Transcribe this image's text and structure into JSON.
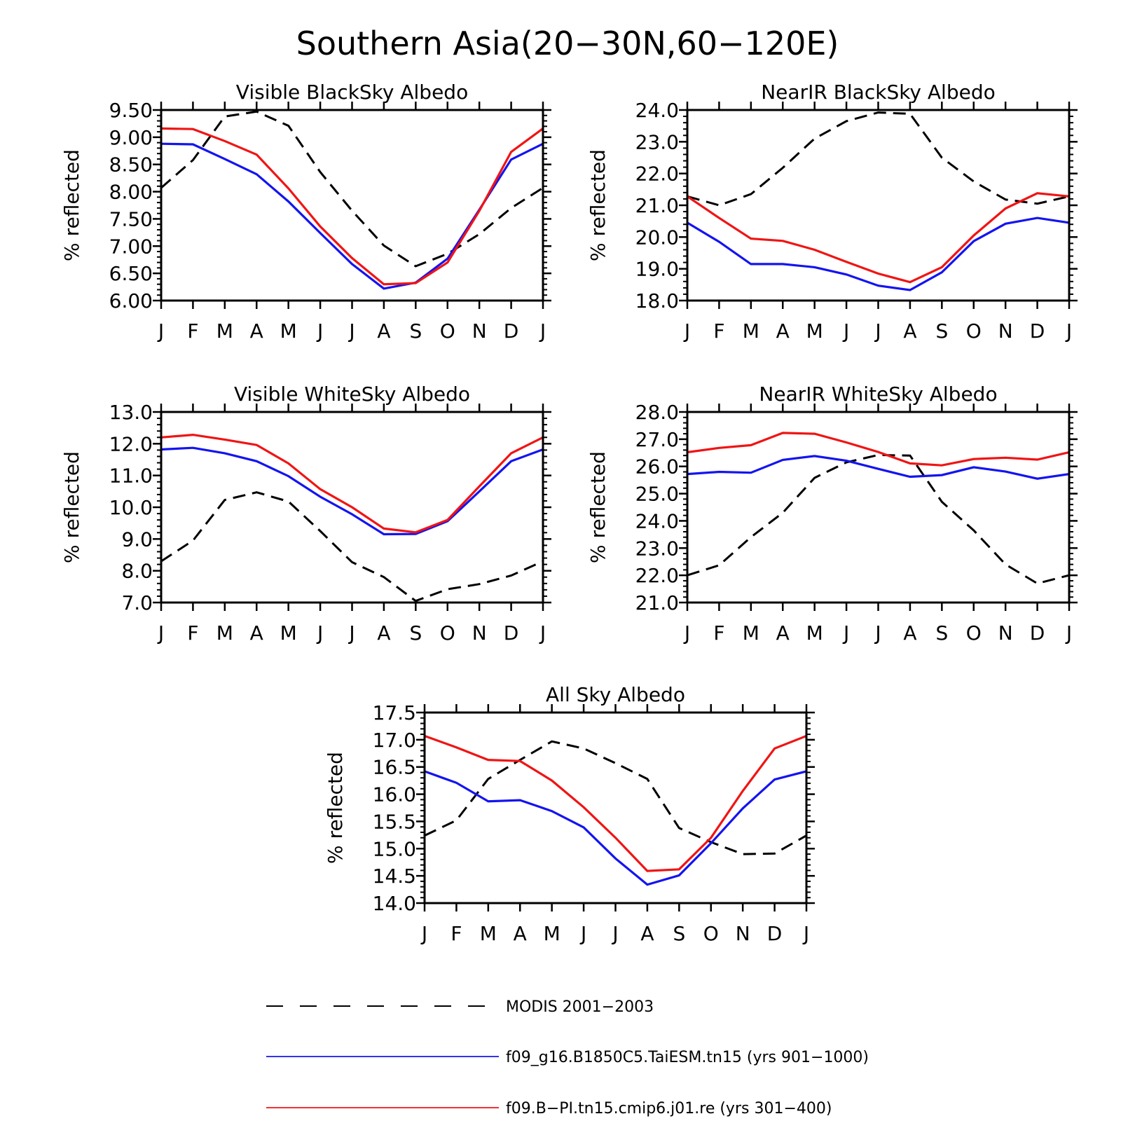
{
  "main_title": "Southern Asia(20−30N,60−120E)",
  "months": [
    "J",
    "F",
    "M",
    "A",
    "M",
    "J",
    "J",
    "A",
    "S",
    "O",
    "N",
    "D",
    "J"
  ],
  "colors": {
    "modis": "#000000",
    "taiesm": "#1414f0",
    "cmip6": "#f01414"
  },
  "legend": [
    {
      "label": "MODIS 2001−2003",
      "style": "dashed",
      "color": "#000000"
    },
    {
      "label": "f09_g16.B1850C5.TaiESM.tn15 (yrs 901−1000)",
      "style": "solid",
      "color": "#1414f0"
    },
    {
      "label": "f09.B−PI.tn15.cmip6.j01.re (yrs 301−400)",
      "style": "solid",
      "color": "#f01414"
    }
  ],
  "chart_data": [
    {
      "type": "line",
      "title": "Visible BlackSky Albedo",
      "ylabel": "% reflected",
      "ylim": [
        6.0,
        9.5
      ],
      "yticks": [
        "6.00",
        "6.50",
        "7.00",
        "7.50",
        "8.00",
        "8.50",
        "9.00",
        "9.50"
      ],
      "categories": [
        "J",
        "F",
        "M",
        "A",
        "M",
        "J",
        "J",
        "A",
        "S",
        "O",
        "N",
        "D",
        "J"
      ],
      "series": [
        {
          "name": "MODIS 2001−2003",
          "style": "dashed",
          "values": [
            8.07,
            8.58,
            9.38,
            9.47,
            9.21,
            8.36,
            7.65,
            7.01,
            6.63,
            6.86,
            7.22,
            7.7,
            8.07
          ]
        },
        {
          "name": "f09_g16.B1850C5.TaiESM.tn15 (yrs 901−1000)",
          "style": "solid",
          "values": [
            8.88,
            8.87,
            8.6,
            8.32,
            7.82,
            7.24,
            6.67,
            6.22,
            6.33,
            6.77,
            7.67,
            8.59,
            8.88
          ]
        },
        {
          "name": "f09.B−PI.tn15.cmip6.j01.re (yrs 301−400)",
          "style": "solid",
          "values": [
            9.16,
            9.15,
            8.93,
            8.68,
            8.06,
            7.36,
            6.78,
            6.3,
            6.32,
            6.7,
            7.65,
            8.73,
            9.16
          ]
        }
      ]
    },
    {
      "type": "line",
      "title": "NearIR BlackSky Albedo",
      "ylabel": "% reflected",
      "ylim": [
        18.0,
        24.0
      ],
      "yticks": [
        "18.0",
        "19.0",
        "20.0",
        "21.0",
        "22.0",
        "23.0",
        "24.0"
      ],
      "categories": [
        "J",
        "F",
        "M",
        "A",
        "M",
        "J",
        "J",
        "A",
        "S",
        "O",
        "N",
        "D",
        "J"
      ],
      "series": [
        {
          "name": "MODIS 2001−2003",
          "style": "dashed",
          "values": [
            21.28,
            21.0,
            21.35,
            22.18,
            23.1,
            23.65,
            23.92,
            23.88,
            22.5,
            21.75,
            21.18,
            21.05,
            21.28
          ]
        },
        {
          "name": "f09_g16.B1850C5.TaiESM.tn15 (yrs 901−1000)",
          "style": "solid",
          "values": [
            20.45,
            19.85,
            19.15,
            19.15,
            19.05,
            18.82,
            18.47,
            18.33,
            18.89,
            19.87,
            20.42,
            20.6,
            20.45
          ]
        },
        {
          "name": "f09.B−PI.tn15.cmip6.j01.re (yrs 301−400)",
          "style": "solid",
          "values": [
            21.28,
            20.6,
            19.95,
            19.88,
            19.6,
            19.22,
            18.85,
            18.58,
            19.05,
            20.05,
            20.9,
            21.38,
            21.28
          ]
        }
      ]
    },
    {
      "type": "line",
      "title": "Visible WhiteSky Albedo",
      "ylabel": "% reflected",
      "ylim": [
        7.0,
        13.0
      ],
      "yticks": [
        "7.0",
        "8.0",
        "9.0",
        "10.0",
        "11.0",
        "12.0",
        "13.0"
      ],
      "categories": [
        "J",
        "F",
        "M",
        "A",
        "M",
        "J",
        "J",
        "A",
        "S",
        "O",
        "N",
        "D",
        "J"
      ],
      "series": [
        {
          "name": "MODIS 2001−2003",
          "style": "dashed",
          "values": [
            8.3,
            8.95,
            10.23,
            10.47,
            10.18,
            9.25,
            8.27,
            7.8,
            7.05,
            7.42,
            7.58,
            7.85,
            8.3
          ]
        },
        {
          "name": "f09_g16.B1850C5.TaiESM.tn15 (yrs 901−1000)",
          "style": "solid",
          "values": [
            11.82,
            11.87,
            11.7,
            11.45,
            10.98,
            10.33,
            9.78,
            9.15,
            9.16,
            9.56,
            10.5,
            11.45,
            11.82
          ]
        },
        {
          "name": "f09.B−PI.tn15.cmip6.j01.re (yrs 301−400)",
          "style": "solid",
          "values": [
            12.2,
            12.28,
            12.13,
            11.96,
            11.38,
            10.57,
            10.0,
            9.33,
            9.21,
            9.6,
            10.66,
            11.7,
            12.2
          ]
        }
      ]
    },
    {
      "type": "line",
      "title": "NearIR WhiteSky Albedo",
      "ylabel": "% reflected",
      "ylim": [
        21.0,
        28.0
      ],
      "yticks": [
        "21.0",
        "22.0",
        "23.0",
        "24.0",
        "25.0",
        "26.0",
        "27.0",
        "28.0"
      ],
      "categories": [
        "J",
        "F",
        "M",
        "A",
        "M",
        "J",
        "J",
        "A",
        "S",
        "O",
        "N",
        "D",
        "J"
      ],
      "series": [
        {
          "name": "MODIS 2001−2003",
          "style": "dashed",
          "values": [
            22.0,
            22.37,
            23.4,
            24.3,
            25.58,
            26.15,
            26.42,
            26.4,
            24.7,
            23.65,
            22.4,
            21.7,
            22.0
          ]
        },
        {
          "name": "f09_g16.B1850C5.TaiESM.tn15 (yrs 901−1000)",
          "style": "solid",
          "values": [
            25.72,
            25.8,
            25.77,
            26.24,
            26.38,
            26.21,
            25.91,
            25.62,
            25.68,
            25.97,
            25.81,
            25.55,
            25.72
          ]
        },
        {
          "name": "f09.B−PI.tn15.cmip6.j01.re (yrs 301−400)",
          "style": "solid",
          "values": [
            26.52,
            26.68,
            26.78,
            27.23,
            27.2,
            26.88,
            26.53,
            26.11,
            26.04,
            26.27,
            26.32,
            26.25,
            26.52
          ]
        }
      ]
    },
    {
      "type": "line",
      "title": "All Sky Albedo",
      "ylabel": "% reflected",
      "ylim": [
        14.0,
        17.5
      ],
      "yticks": [
        "14.0",
        "14.5",
        "15.0",
        "15.5",
        "16.0",
        "16.5",
        "17.0",
        "17.5"
      ],
      "categories": [
        "J",
        "F",
        "M",
        "A",
        "M",
        "J",
        "J",
        "A",
        "S",
        "O",
        "N",
        "D",
        "J"
      ],
      "series": [
        {
          "name": "MODIS 2001−2003",
          "style": "dashed",
          "values": [
            15.24,
            15.52,
            16.28,
            16.63,
            16.97,
            16.84,
            16.57,
            16.28,
            15.38,
            15.12,
            14.9,
            14.91,
            15.24
          ]
        },
        {
          "name": "f09_g16.B1850C5.TaiESM.tn15 (yrs 901−1000)",
          "style": "solid",
          "values": [
            16.42,
            16.21,
            15.87,
            15.89,
            15.69,
            15.39,
            14.82,
            14.34,
            14.51,
            15.1,
            15.74,
            16.27,
            16.42
          ]
        },
        {
          "name": "f09.B−PI.tn15.cmip6.j01.re (yrs 301−400)",
          "style": "solid",
          "values": [
            17.07,
            16.86,
            16.63,
            16.61,
            16.25,
            15.76,
            15.2,
            14.59,
            14.62,
            15.2,
            16.06,
            16.84,
            17.07
          ]
        }
      ]
    }
  ]
}
